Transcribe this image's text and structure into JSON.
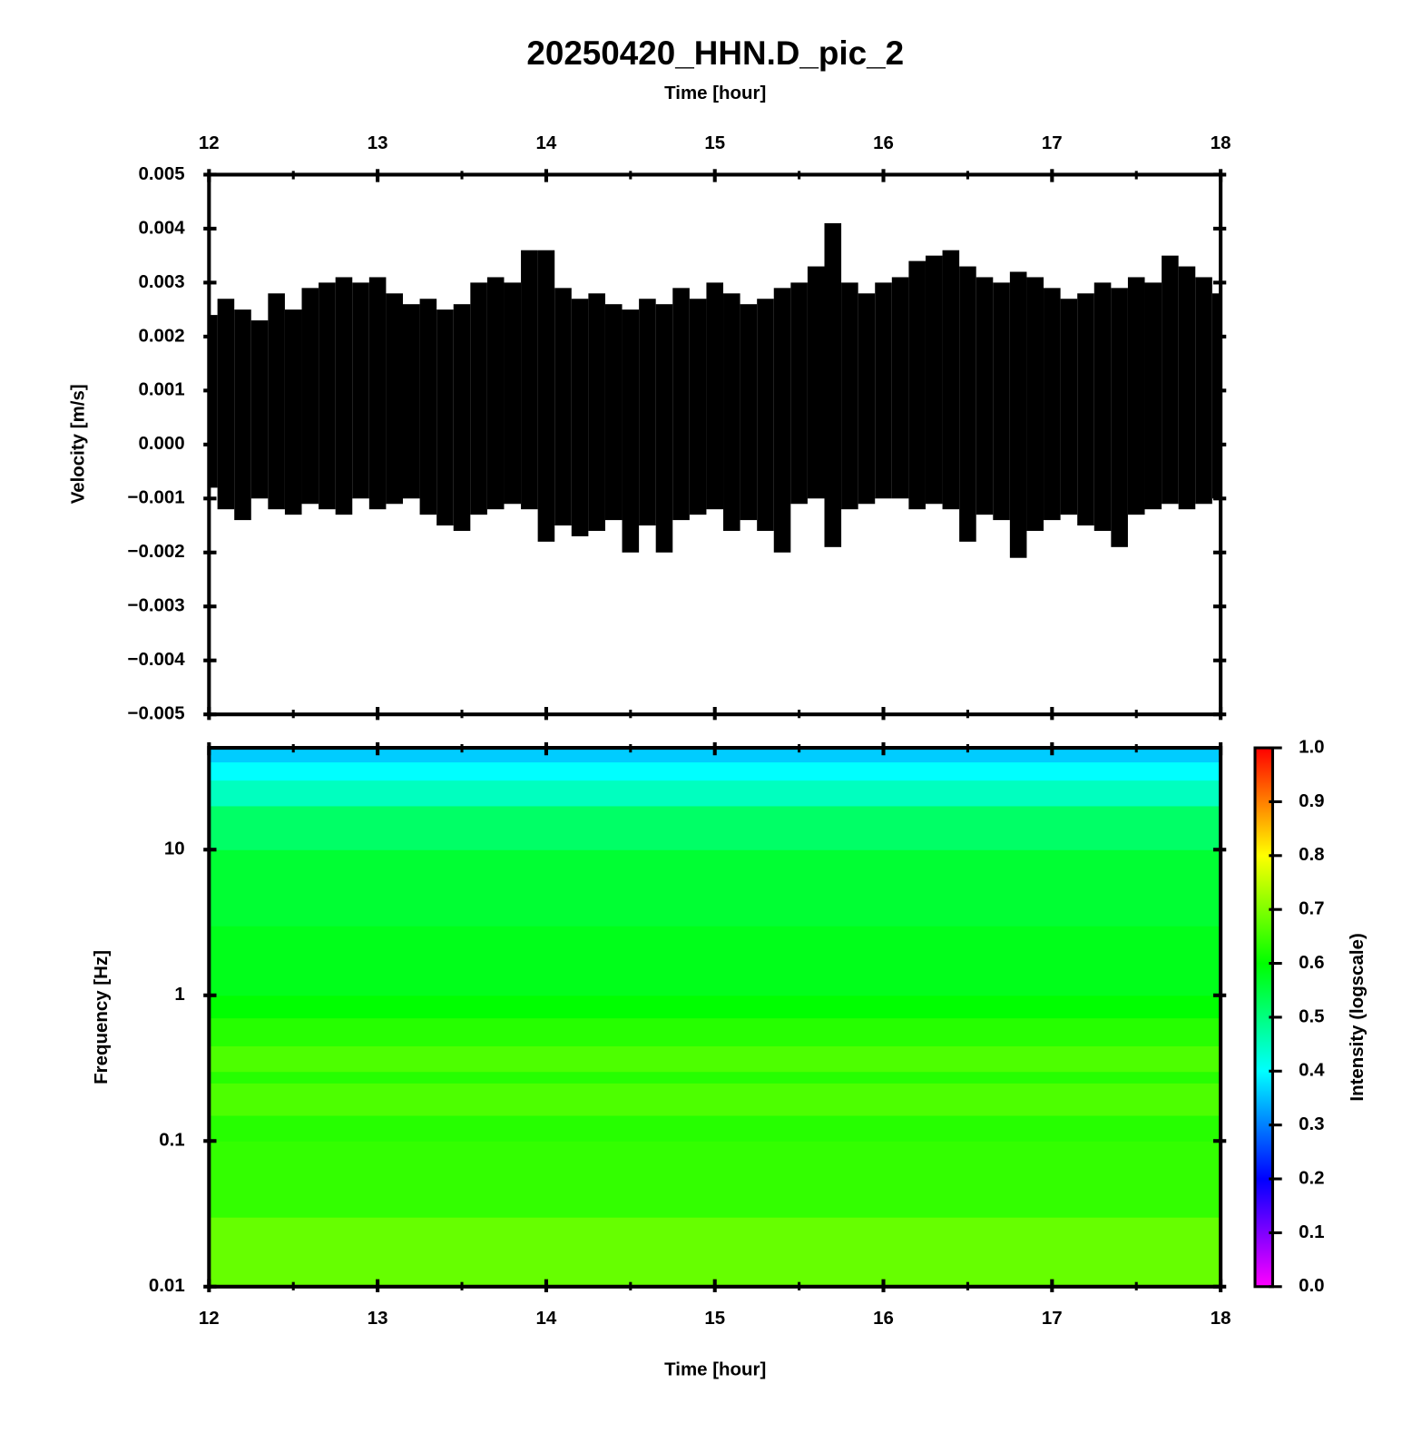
{
  "chart_data": [
    {
      "type": "band",
      "title": "20250420_HHN.D_pic_2",
      "xlabel": "Time [hour]",
      "ylabel": "Velocity [m/s]",
      "xlim": [
        12,
        18
      ],
      "xticks": [
        12,
        13,
        14,
        15,
        16,
        17,
        18
      ],
      "xminorticks": [
        12.5,
        13.5,
        14.5,
        15.5,
        16.5,
        17.5
      ],
      "ylim": [
        -0.005,
        0.005
      ],
      "yticks": [
        {
          "value": -0.005,
          "label": "−0.005"
        },
        {
          "value": -0.004,
          "label": "−0.004"
        },
        {
          "value": -0.003,
          "label": "−0.003"
        },
        {
          "value": -0.002,
          "label": "−0.002"
        },
        {
          "value": -0.001,
          "label": "−0.001"
        },
        {
          "value": 0,
          "label": "0.000"
        },
        0.001,
        0.002,
        0.003,
        0.004,
        0.005
      ],
      "color": "#000000",
      "x": [
        12.0,
        12.1,
        12.2,
        12.3,
        12.4,
        12.5,
        12.6,
        12.7,
        12.8,
        12.9,
        13.0,
        13.1,
        13.2,
        13.3,
        13.4,
        13.5,
        13.6,
        13.7,
        13.8,
        13.9,
        14.0,
        14.1,
        14.2,
        14.3,
        14.4,
        14.5,
        14.6,
        14.7,
        14.8,
        14.9,
        15.0,
        15.1,
        15.2,
        15.3,
        15.4,
        15.5,
        15.6,
        15.7,
        15.8,
        15.9,
        16.0,
        16.1,
        16.2,
        16.3,
        16.4,
        16.5,
        16.6,
        16.7,
        16.8,
        16.9,
        17.0,
        17.1,
        17.2,
        17.3,
        17.4,
        17.5,
        17.6,
        17.7,
        17.8,
        17.9,
        18.0
      ],
      "high": [
        0.0024,
        0.0027,
        0.0025,
        0.0023,
        0.0028,
        0.0025,
        0.0029,
        0.003,
        0.0031,
        0.003,
        0.0031,
        0.0028,
        0.0026,
        0.0027,
        0.0025,
        0.0026,
        0.003,
        0.0031,
        0.003,
        0.0036,
        0.0036,
        0.0029,
        0.0027,
        0.0028,
        0.0026,
        0.0025,
        0.0027,
        0.0026,
        0.0029,
        0.0027,
        0.003,
        0.0028,
        0.0026,
        0.0027,
        0.0029,
        0.003,
        0.0033,
        0.0041,
        0.003,
        0.0028,
        0.003,
        0.0031,
        0.0034,
        0.0035,
        0.0036,
        0.0033,
        0.0031,
        0.003,
        0.0032,
        0.0031,
        0.0029,
        0.0027,
        0.0028,
        0.003,
        0.0029,
        0.0031,
        0.003,
        0.0035,
        0.0033,
        0.0031,
        0.0028
      ],
      "low": [
        -0.0008,
        -0.0012,
        -0.0014,
        -0.001,
        -0.0012,
        -0.0013,
        -0.0011,
        -0.0012,
        -0.0013,
        -0.001,
        -0.0012,
        -0.0011,
        -0.001,
        -0.0013,
        -0.0015,
        -0.0016,
        -0.0013,
        -0.0012,
        -0.0011,
        -0.0012,
        -0.0018,
        -0.0015,
        -0.0017,
        -0.0016,
        -0.0014,
        -0.002,
        -0.0015,
        -0.002,
        -0.0014,
        -0.0013,
        -0.0012,
        -0.0016,
        -0.0014,
        -0.0016,
        -0.002,
        -0.0011,
        -0.001,
        -0.0019,
        -0.0012,
        -0.0011,
        -0.001,
        -0.001,
        -0.0012,
        -0.0011,
        -0.0012,
        -0.0018,
        -0.0013,
        -0.0014,
        -0.0021,
        -0.0016,
        -0.0014,
        -0.0013,
        -0.0015,
        -0.0016,
        -0.0019,
        -0.0013,
        -0.0012,
        -0.0011,
        -0.0012,
        -0.0011,
        -0.001
      ]
    },
    {
      "type": "spectrogram",
      "xlabel": "Time [hour]",
      "ylabel": "Frequency [Hz]",
      "clabel": "Intensity (logscale)",
      "xlim": [
        12,
        18
      ],
      "xticks": [
        12,
        13,
        14,
        15,
        16,
        17,
        18
      ],
      "xminorticks": [
        12.5,
        13.5,
        14.5,
        15.5,
        16.5,
        17.5
      ],
      "ylim": [
        0.01,
        50
      ],
      "yticks": [
        0.01,
        0.1,
        1,
        10
      ],
      "log_y": true,
      "ybins": [
        0.01,
        0.03,
        0.1,
        0.15,
        0.25,
        0.3,
        0.45,
        0.7,
        1,
        3,
        10,
        20,
        30,
        40,
        50
      ],
      "values": [
        0.68,
        0.64,
        0.63,
        0.66,
        0.63,
        0.66,
        0.63,
        0.6,
        0.58,
        0.56,
        0.52,
        0.45,
        0.4,
        0.36
      ],
      "clim": [
        0,
        1
      ],
      "cticks": [
        {
          "value": 0,
          "label": "0.0"
        },
        0.1,
        0.2,
        0.3,
        0.4,
        0.5,
        0.6,
        0.7,
        0.8,
        0.9,
        {
          "value": 1,
          "label": "1.0"
        }
      ],
      "colormap": [
        "#ff00ff",
        "#0000ff",
        "#00ffff",
        "#00ff00",
        "#ffff00",
        "#ff0000"
      ]
    }
  ]
}
